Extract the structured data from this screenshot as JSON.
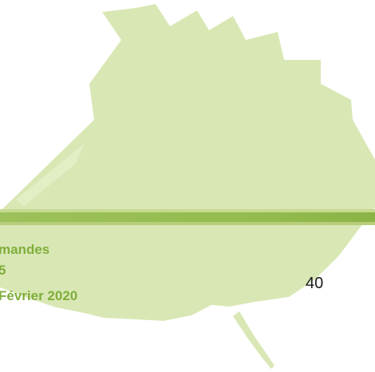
{
  "footer": {
    "line1": "mandes",
    "line2": "5",
    "line3": "Février 2020"
  },
  "page_number": "40",
  "colors": {
    "leaf": "#d9e7b5",
    "band": "#9cc15a",
    "footer_text": "#7fae3a"
  }
}
